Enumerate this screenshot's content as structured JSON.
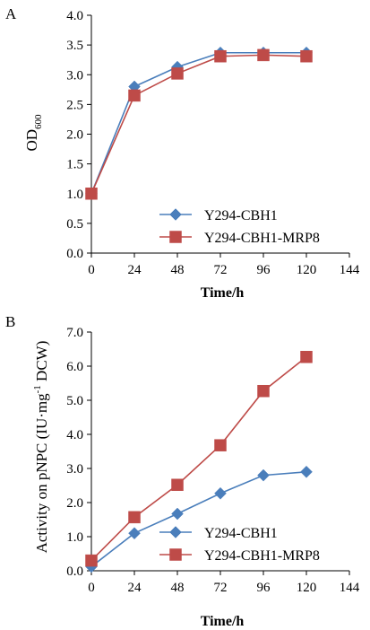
{
  "chart_data": [
    {
      "type": "line",
      "panel_label": "A",
      "ylabel_main": "OD",
      "ylabel_sub": "600",
      "xlabel": "Time/h",
      "x": [
        0,
        24,
        48,
        72,
        96,
        120
      ],
      "xlim": [
        0,
        144
      ],
      "ylim": [
        0,
        4.0
      ],
      "xticks": [
        "0",
        "24",
        "48",
        "72",
        "96",
        "120",
        "144"
      ],
      "yticks": [
        "0.0",
        "0.5",
        "1.0",
        "1.5",
        "2.0",
        "2.5",
        "3.0",
        "3.5",
        "4.0"
      ],
      "grid": false,
      "legend_position": "bottom-right",
      "series": [
        {
          "name": "Y294-CBH1",
          "marker": "diamond",
          "color": "#4a7ebb",
          "values": [
            1.0,
            2.8,
            3.13,
            3.37,
            3.37,
            3.37
          ]
        },
        {
          "name": "Y294-CBH1-MRP8",
          "marker": "square",
          "color": "#be4b48",
          "values": [
            1.0,
            2.65,
            3.02,
            3.31,
            3.33,
            3.31
          ]
        }
      ]
    },
    {
      "type": "line",
      "panel_label": "B",
      "ylabel_main": "Activity on pNPC (IU·mg",
      "ylabel_sup": "-1",
      "ylabel_end": " DCW)",
      "xlabel": "Time/h",
      "x": [
        0,
        24,
        48,
        72,
        96,
        120
      ],
      "xlim": [
        0,
        144
      ],
      "ylim": [
        0,
        7.0
      ],
      "xticks": [
        "0",
        "24",
        "48",
        "72",
        "96",
        "120",
        "144"
      ],
      "yticks": [
        "0.0",
        "1.0",
        "2.0",
        "3.0",
        "4.0",
        "5.0",
        "6.0",
        "7.0"
      ],
      "grid": false,
      "legend_position": "bottom-right",
      "series": [
        {
          "name": "Y294-CBH1",
          "marker": "diamond",
          "color": "#4a7ebb",
          "values": [
            0.12,
            1.1,
            1.67,
            2.27,
            2.8,
            2.9
          ]
        },
        {
          "name": "Y294-CBH1-MRP8",
          "marker": "square",
          "color": "#be4b48",
          "values": [
            0.3,
            1.57,
            2.52,
            3.68,
            5.27,
            6.27
          ]
        }
      ]
    }
  ]
}
